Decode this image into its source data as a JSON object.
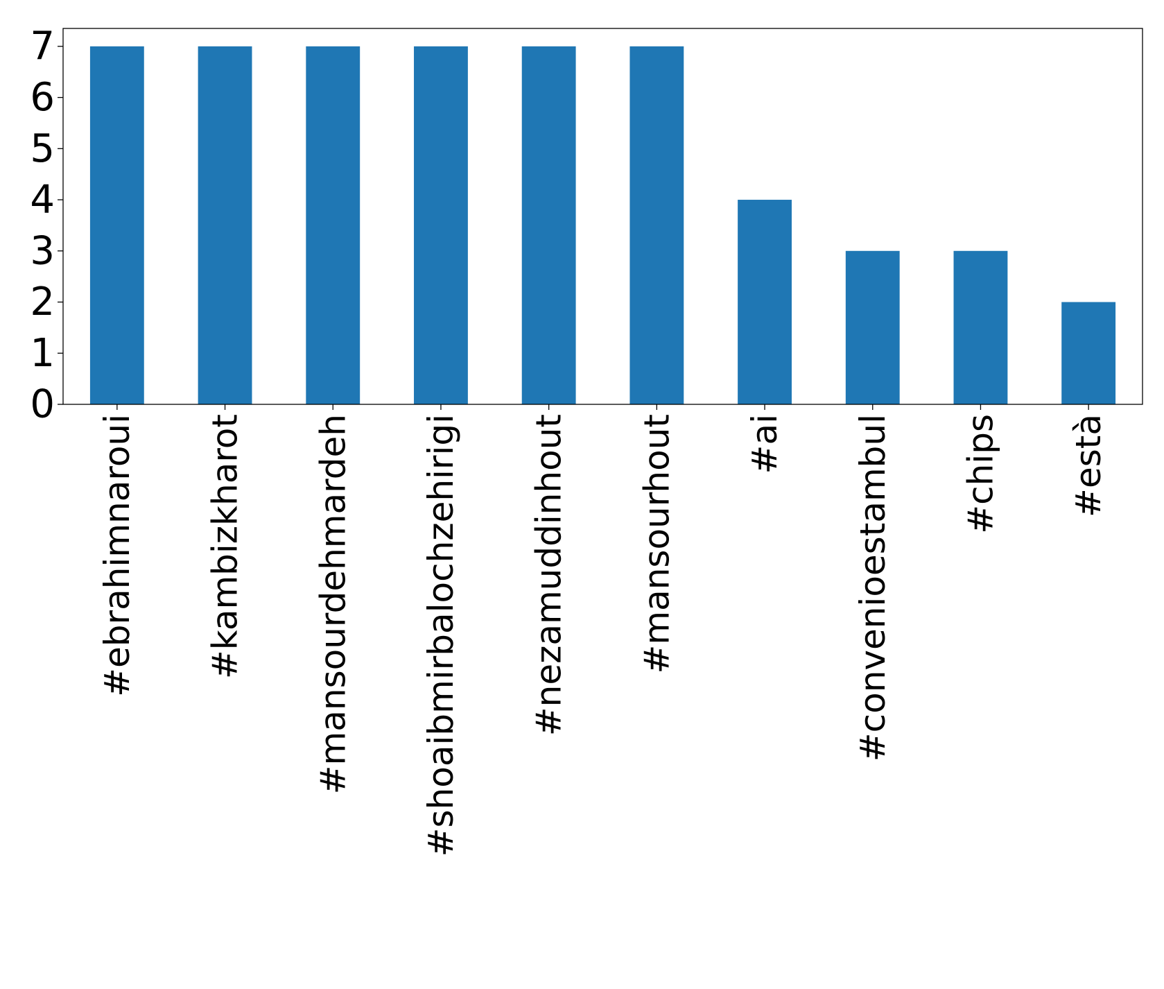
{
  "chart_data": {
    "type": "bar",
    "title": "",
    "xlabel": "",
    "ylabel": "",
    "categories": [
      "#ebrahimnaroui",
      "#kambizkharot",
      "#mansourdehmardeh",
      "#shoaibmirbalochzehirigi",
      "#nezamuddinhout",
      "#mansourhout",
      "#ai",
      "#convenioestambul",
      "#chips",
      "#està"
    ],
    "values": [
      7,
      7,
      7,
      7,
      7,
      7,
      4,
      3,
      3,
      2
    ],
    "ylim": [
      0,
      7.35
    ],
    "yticks": [
      "0",
      "1",
      "2",
      "3",
      "4",
      "5",
      "6",
      "7"
    ],
    "grid": false,
    "legend": "none",
    "bar_color": "#1f77b4"
  }
}
